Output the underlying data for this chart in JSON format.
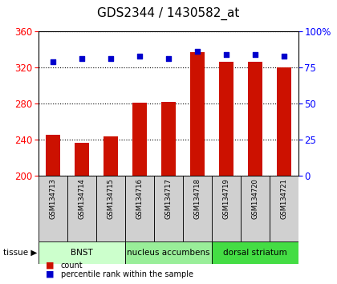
{
  "title": "GDS2344 / 1430582_at",
  "samples": [
    "GSM134713",
    "GSM134714",
    "GSM134715",
    "GSM134716",
    "GSM134717",
    "GSM134718",
    "GSM134719",
    "GSM134720",
    "GSM134721"
  ],
  "counts": [
    246,
    237,
    244,
    281,
    282,
    337,
    326,
    326,
    320
  ],
  "percentiles": [
    79,
    81,
    81,
    83,
    81,
    86,
    84,
    84,
    83
  ],
  "tissue_groups": [
    {
      "label": "BNST",
      "start": 0,
      "end": 2,
      "color": "#ccffcc"
    },
    {
      "label": "nucleus accumbens",
      "start": 3,
      "end": 5,
      "color": "#99ee99"
    },
    {
      "label": "dorsal striatum",
      "start": 6,
      "end": 8,
      "color": "#44dd44"
    }
  ],
  "ylim_left": [
    200,
    360
  ],
  "ylim_right": [
    0,
    100
  ],
  "yticks_left": [
    200,
    240,
    280,
    320,
    360
  ],
  "yticks_right": [
    0,
    25,
    50,
    75,
    100
  ],
  "bar_color": "#cc1100",
  "dot_color": "#0000cc",
  "bar_bottom": 200,
  "legend_items": [
    "count",
    "percentile rank within the sample"
  ]
}
